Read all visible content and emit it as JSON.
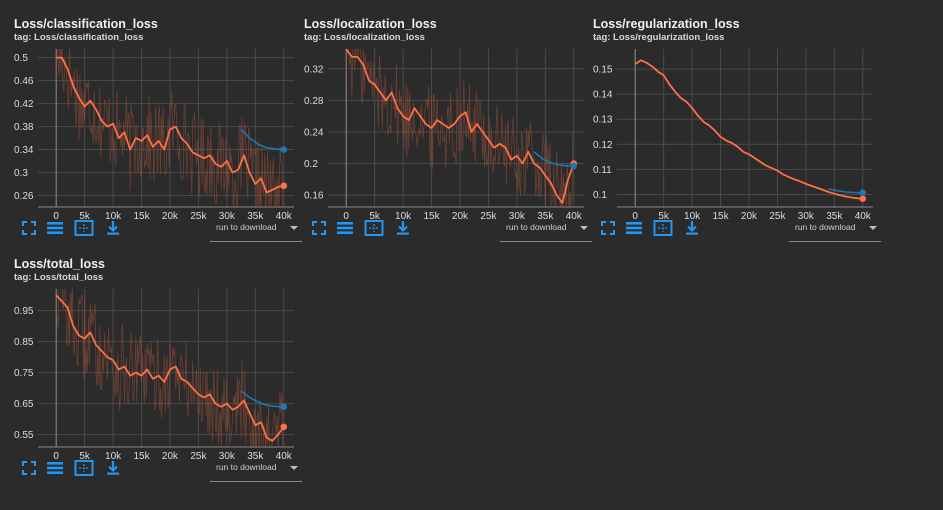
{
  "colors": {
    "background": "#2b2b2b",
    "grid": "#4a4a4a",
    "smoothed": "#ff7043",
    "raw": "#a0523a",
    "blue_run": "#1f78b4",
    "icon_blue": "#2196f3"
  },
  "toolbar": {
    "icons": [
      "fullscreen-icon",
      "log-scale-icon",
      "fit-domain-icon",
      "download-icon"
    ],
    "download_label": "run to download"
  },
  "cards": [
    {
      "title": "Loss/classification_loss",
      "tag": "tag: Loss/classification_loss",
      "chart_data": {
        "type": "line",
        "x_ticks": [
          "0",
          "5k",
          "10k",
          "15k",
          "20k",
          "25k",
          "30k",
          "35k",
          "40k"
        ],
        "y_ticks": [
          "0.26",
          "0.3",
          "0.34",
          "0.38",
          "0.42",
          "0.46",
          "0.5"
        ],
        "xlim": [
          -3200,
          41800
        ],
        "ylim": [
          0.24,
          0.515
        ],
        "grid": true,
        "series": [
          {
            "color": "#ff7043",
            "x": [
              0,
              1000,
              2000,
              3000,
              4000,
              5000,
              6000,
              7000,
              8000,
              9000,
              10000,
              11000,
              12000,
              13000,
              14000,
              15000,
              16000,
              17000,
              18000,
              19000,
              20000,
              21000,
              22000,
              23000,
              24000,
              25000,
              26000,
              27000,
              28000,
              29000,
              30000,
              31000,
              32000,
              33000,
              34000,
              35000,
              36000,
              37000,
              38000,
              39000,
              40000
            ],
            "y": [
              0.5,
              0.5,
              0.48,
              0.45,
              0.43,
              0.415,
              0.425,
              0.41,
              0.39,
              0.38,
              0.385,
              0.36,
              0.37,
              0.34,
              0.36,
              0.355,
              0.365,
              0.345,
              0.355,
              0.34,
              0.375,
              0.38,
              0.36,
              0.35,
              0.335,
              0.33,
              0.325,
              0.33,
              0.315,
              0.31,
              0.32,
              0.3,
              0.305,
              0.33,
              0.3,
              0.28,
              0.29,
              0.265,
              0.27,
              0.275,
              0.277
            ]
          },
          {
            "color": "#1f78b4",
            "x": [
              32500,
              34000,
              35500,
              37000,
              38500,
              40000
            ],
            "y": [
              0.375,
              0.36,
              0.349,
              0.343,
              0.341,
              0.34
            ]
          }
        ]
      }
    },
    {
      "title": "Loss/localization_loss",
      "tag": "tag: Loss/localization_loss",
      "chart_data": {
        "type": "line",
        "x_ticks": [
          "0",
          "5k",
          "10k",
          "15k",
          "20k",
          "25k",
          "30k",
          "35k",
          "40k"
        ],
        "y_ticks": [
          "0.16",
          "0.2",
          "0.24",
          "0.28",
          "0.32"
        ],
        "xlim": [
          -3200,
          41800
        ],
        "ylim": [
          0.145,
          0.345
        ],
        "grid": true,
        "series": [
          {
            "color": "#ff7043",
            "x": [
              0,
              1000,
              2000,
              3000,
              4000,
              5000,
              6000,
              7000,
              8000,
              9000,
              10000,
              11000,
              12000,
              13000,
              14000,
              15000,
              16000,
              17000,
              18000,
              19000,
              20000,
              21000,
              22000,
              23000,
              24000,
              25000,
              26000,
              27000,
              28000,
              29000,
              30000,
              31000,
              32000,
              33000,
              34000,
              35000,
              36000,
              37000,
              38000,
              39000,
              40000
            ],
            "y": [
              0.345,
              0.335,
              0.335,
              0.325,
              0.305,
              0.3,
              0.29,
              0.28,
              0.29,
              0.27,
              0.26,
              0.255,
              0.27,
              0.26,
              0.25,
              0.245,
              0.255,
              0.25,
              0.245,
              0.25,
              0.26,
              0.265,
              0.24,
              0.25,
              0.24,
              0.23,
              0.22,
              0.225,
              0.22,
              0.205,
              0.21,
              0.2,
              0.215,
              0.2,
              0.195,
              0.185,
              0.175,
              0.16,
              0.15,
              0.18,
              0.2
            ]
          },
          {
            "color": "#1f78b4",
            "x": [
              33000,
              34500,
              36000,
              37500,
              39000,
              40000
            ],
            "y": [
              0.215,
              0.206,
              0.201,
              0.198,
              0.197,
              0.197
            ]
          }
        ]
      }
    },
    {
      "title": "Loss/regularization_loss",
      "tag": "tag: Loss/regularization_loss",
      "chart_data": {
        "type": "line",
        "x_ticks": [
          "0",
          "5k",
          "10k",
          "15k",
          "20k",
          "25k",
          "30k",
          "35k",
          "40k"
        ],
        "y_ticks": [
          "0.1",
          "0.11",
          "0.12",
          "0.13",
          "0.14",
          "0.15"
        ],
        "xlim": [
          -3200,
          41800
        ],
        "ylim": [
          0.095,
          0.158
        ],
        "grid": true,
        "series": [
          {
            "color": "#ff7043",
            "x": [
              0,
              1000,
              2000,
              3000,
              4000,
              5000,
              6000,
              7000,
              8000,
              9000,
              10000,
              11000,
              12000,
              13000,
              14000,
              15000,
              16000,
              17000,
              18000,
              19000,
              20000,
              21000,
              22000,
              23000,
              24000,
              25000,
              26000,
              27000,
              28000,
              29000,
              30000,
              31000,
              32000,
              33000,
              34000,
              35000,
              36000,
              37000,
              38000,
              39000,
              40000
            ],
            "y": [
              0.152,
              0.1535,
              0.1525,
              0.151,
              0.149,
              0.1475,
              0.144,
              0.141,
              0.1385,
              0.137,
              0.1345,
              0.1315,
              0.129,
              0.1275,
              0.1255,
              0.123,
              0.1215,
              0.1205,
              0.119,
              0.117,
              0.116,
              0.1145,
              0.113,
              0.1115,
              0.1105,
              0.1095,
              0.108,
              0.107,
              0.106,
              0.1052,
              0.1042,
              0.1034,
              0.1026,
              0.1018,
              0.101,
              0.1003,
              0.0997,
              0.0992,
              0.0988,
              0.0985,
              0.0983
            ]
          },
          {
            "color": "#1f78b4",
            "x": [
              34000,
              35500,
              37000,
              38500,
              40000
            ],
            "y": [
              0.1022,
              0.1015,
              0.101,
              0.1008,
              0.1007
            ]
          }
        ]
      }
    },
    {
      "title": "Loss/total_loss",
      "tag": "tag: Loss/total_loss",
      "chart_data": {
        "type": "line",
        "x_ticks": [
          "0",
          "5k",
          "10k",
          "15k",
          "20k",
          "25k",
          "30k",
          "35k",
          "40k"
        ],
        "y_ticks": [
          "0.55",
          "0.65",
          "0.75",
          "0.85",
          "0.95"
        ],
        "xlim": [
          -3200,
          41800
        ],
        "ylim": [
          0.51,
          1.02
        ],
        "grid": true,
        "series": [
          {
            "color": "#ff7043",
            "x": [
              0,
              1000,
              2000,
              3000,
              4000,
              5000,
              6000,
              7000,
              8000,
              9000,
              10000,
              11000,
              12000,
              13000,
              14000,
              15000,
              16000,
              17000,
              18000,
              19000,
              20000,
              21000,
              22000,
              23000,
              24000,
              25000,
              26000,
              27000,
              28000,
              29000,
              30000,
              31000,
              32000,
              33000,
              34000,
              35000,
              36000,
              37000,
              38000,
              39000,
              40000
            ],
            "y": [
              1.0,
              0.98,
              0.96,
              0.9,
              0.87,
              0.86,
              0.88,
              0.84,
              0.82,
              0.8,
              0.79,
              0.76,
              0.77,
              0.74,
              0.75,
              0.74,
              0.76,
              0.73,
              0.74,
              0.72,
              0.76,
              0.77,
              0.73,
              0.72,
              0.7,
              0.68,
              0.67,
              0.68,
              0.65,
              0.64,
              0.65,
              0.63,
              0.64,
              0.66,
              0.62,
              0.58,
              0.59,
              0.54,
              0.53,
              0.55,
              0.575
            ]
          },
          {
            "color": "#1f78b4",
            "x": [
              32500,
              34000,
              35500,
              37000,
              38500,
              40000
            ],
            "y": [
              0.69,
              0.67,
              0.655,
              0.645,
              0.641,
              0.64
            ]
          }
        ]
      }
    }
  ]
}
